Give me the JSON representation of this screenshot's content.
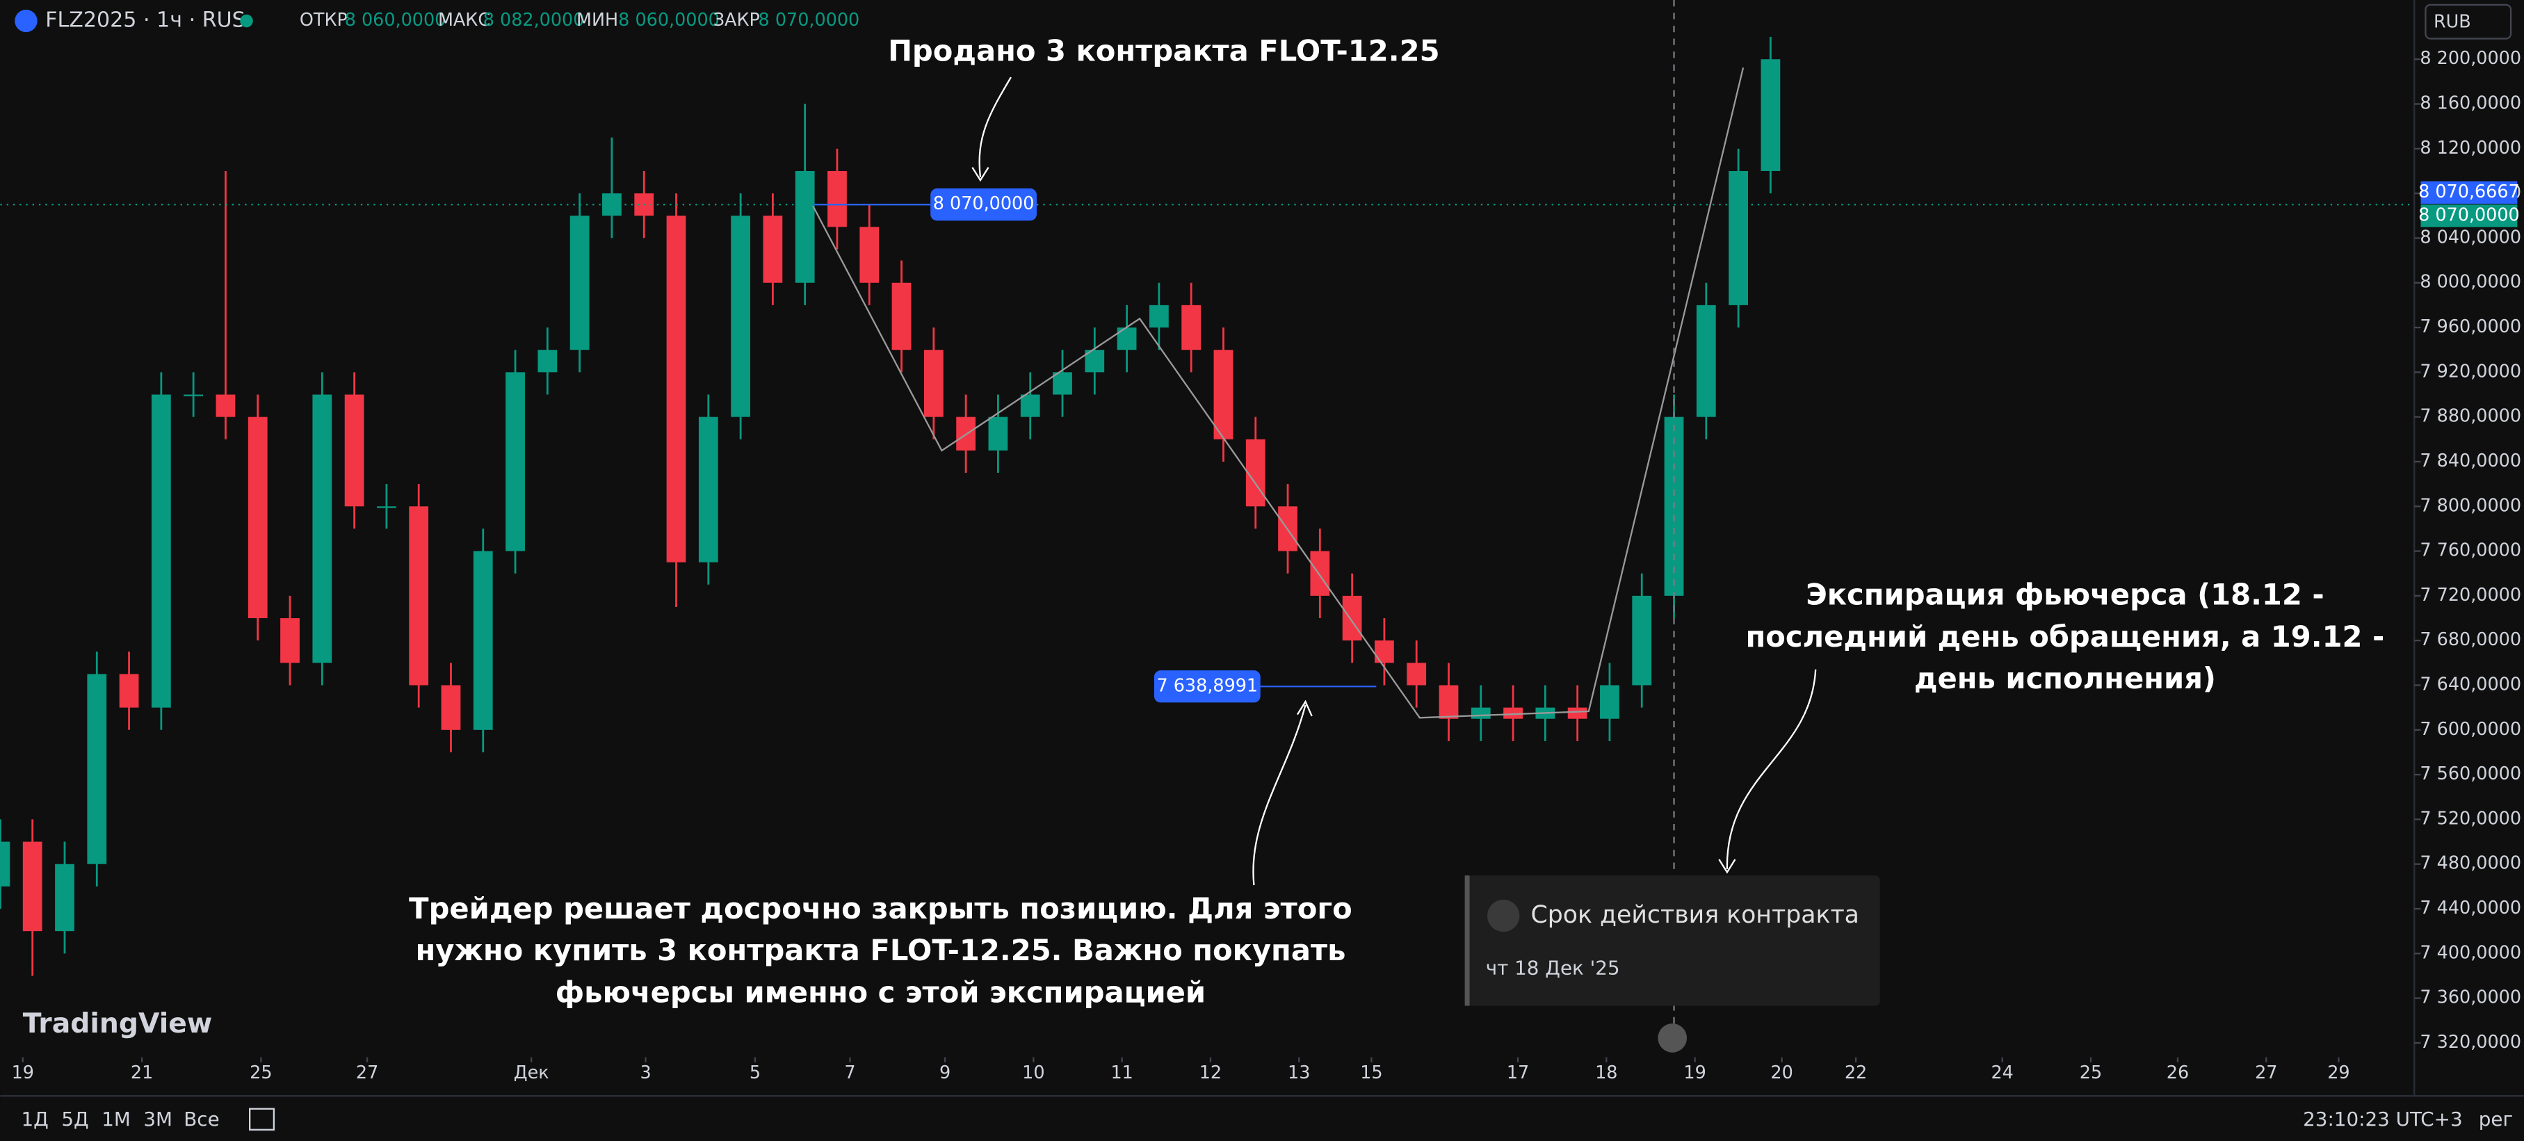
{
  "header": {
    "symbol": "FLZ2025 · 1ч · RUS",
    "ohlc": [
      {
        "label": "ОТКР",
        "value": "8 060,0000"
      },
      {
        "label": "МАКС",
        "value": "8 082,0000"
      },
      {
        "label": "МИН",
        "value": "8 060,0000"
      },
      {
        "label": "ЗАКР",
        "value": "8 070,0000"
      }
    ],
    "currency": "RUB",
    "logo": "TradingView"
  },
  "chart_data": {
    "type": "candlestick",
    "x": [
      0,
      2,
      4,
      6,
      8,
      10,
      12,
      14,
      16,
      18,
      20,
      22,
      24,
      26,
      28,
      30,
      32,
      34,
      36,
      38,
      40,
      42,
      44,
      46,
      48,
      50,
      52,
      54,
      56,
      58,
      60,
      62,
      64,
      66,
      68,
      70,
      72,
      74,
      76,
      78,
      80,
      82,
      84,
      86,
      88,
      90,
      92,
      94,
      96,
      98,
      100,
      102,
      104,
      106,
      108,
      110
    ],
    "open": [
      7460,
      7500,
      7420,
      7480,
      7650,
      7620,
      7900,
      7900,
      7880,
      7700,
      7660,
      7900,
      7800,
      7800,
      7640,
      7600,
      7760,
      7920,
      7940,
      8060,
      8080,
      8060,
      7750,
      7880,
      8060,
      8000,
      8100,
      8050,
      8000,
      7940,
      7880,
      7850,
      7880,
      7900,
      7920,
      7940,
      7960,
      7980,
      7940,
      7860,
      7800,
      7760,
      7720,
      7680,
      7660,
      7640,
      7610,
      7620,
      7610,
      7620,
      7610,
      7640,
      7720,
      7880,
      7980,
      8100
    ],
    "high": [
      7520,
      7520,
      7500,
      7670,
      7670,
      7920,
      7920,
      8100,
      7900,
      7720,
      7920,
      7920,
      7820,
      7820,
      7660,
      7780,
      7940,
      7960,
      8080,
      8130,
      8100,
      8080,
      7900,
      8080,
      8080,
      8160,
      8120,
      8070,
      8020,
      7960,
      7900,
      7900,
      7920,
      7940,
      7960,
      7980,
      8000,
      8000,
      7960,
      7880,
      7820,
      7780,
      7740,
      7700,
      7680,
      7660,
      7640,
      7640,
      7640,
      7640,
      7660,
      7740,
      7900,
      8000,
      8120,
      8220
    ],
    "low": [
      7440,
      7380,
      7400,
      7460,
      7600,
      7600,
      7880,
      7860,
      7680,
      7640,
      7640,
      7780,
      7780,
      7620,
      7580,
      7580,
      7740,
      7900,
      7920,
      8040,
      8040,
      7710,
      7730,
      7860,
      7980,
      7980,
      8030,
      7980,
      7920,
      7860,
      7830,
      7830,
      7860,
      7880,
      7900,
      7920,
      7940,
      7920,
      7840,
      7780,
      7740,
      7700,
      7660,
      7640,
      7620,
      7590,
      7590,
      7590,
      7590,
      7590,
      7590,
      7620,
      7700,
      7860,
      7960,
      8080
    ],
    "close": [
      7500,
      7420,
      7480,
      7650,
      7620,
      7900,
      7900,
      7880,
      7700,
      7660,
      7900,
      7800,
      7800,
      7640,
      7600,
      7760,
      7920,
      7940,
      8060,
      8080,
      8060,
      7750,
      7880,
      8060,
      8000,
      8100,
      8050,
      8000,
      7940,
      7880,
      7850,
      7880,
      7900,
      7920,
      7940,
      7960,
      7980,
      7940,
      7860,
      7800,
      7760,
      7720,
      7680,
      7660,
      7640,
      7610,
      7620,
      7610,
      7620,
      7610,
      7640,
      7720,
      7880,
      7980,
      8100,
      8200
    ],
    "up_color": "#089981",
    "down_color": "#f23645",
    "xlim": [
      0,
      150
    ],
    "ylim": [
      7310,
      8253
    ],
    "xticks": [
      {
        "value": 1.4,
        "label": "19"
      },
      {
        "value": 8.8,
        "label": "21"
      },
      {
        "value": 16.2,
        "label": "25"
      },
      {
        "value": 22.8,
        "label": "27"
      },
      {
        "value": 33,
        "label": "Дек"
      },
      {
        "value": 40.1,
        "label": "3"
      },
      {
        "value": 46.9,
        "label": "5"
      },
      {
        "value": 52.8,
        "label": "7"
      },
      {
        "value": 58.7,
        "label": "9"
      },
      {
        "value": 64.2,
        "label": "10"
      },
      {
        "value": 69.7,
        "label": "11"
      },
      {
        "value": 75.2,
        "label": "12"
      },
      {
        "value": 80.7,
        "label": "13"
      },
      {
        "value": 85.2,
        "label": "15"
      },
      {
        "value": 94.3,
        "label": "17"
      },
      {
        "value": 99.8,
        "label": "18"
      },
      {
        "value": 105.3,
        "label": "19"
      },
      {
        "value": 110.7,
        "label": "20"
      },
      {
        "value": 115.3,
        "label": "22"
      },
      {
        "value": 124.4,
        "label": "24"
      },
      {
        "value": 129.9,
        "label": "25"
      },
      {
        "value": 135.3,
        "label": "26"
      },
      {
        "value": 140.8,
        "label": "27"
      },
      {
        "value": 145.3,
        "label": "29"
      }
    ],
    "yticks": [
      {
        "value": 7320,
        "label": "7 320,0000"
      },
      {
        "value": 7360,
        "label": "7 360,0000"
      },
      {
        "value": 7400,
        "label": "7 400,0000"
      },
      {
        "value": 7440,
        "label": "7 440,0000"
      },
      {
        "value": 7480,
        "label": "7 480,0000"
      },
      {
        "value": 7520,
        "label": "7 520,0000"
      },
      {
        "value": 7560,
        "label": "7 560,0000"
      },
      {
        "value": 7600,
        "label": "7 600,0000"
      },
      {
        "value": 7640,
        "label": "7 640,0000"
      },
      {
        "value": 7680,
        "label": "7 680,0000"
      },
      {
        "value": 7720,
        "label": "7 720,0000"
      },
      {
        "value": 7760,
        "label": "7 760,0000"
      },
      {
        "value": 7800,
        "label": "7 800,0000"
      },
      {
        "value": 7840,
        "label": "7 840,0000"
      },
      {
        "value": 7880,
        "label": "7 880,0000"
      },
      {
        "value": 7920,
        "label": "7 920,0000"
      },
      {
        "value": 7960,
        "label": "7 960,0000"
      },
      {
        "value": 8000,
        "label": "8 000,0000"
      },
      {
        "value": 8040,
        "label": "8 040,0000"
      },
      {
        "value": 8080,
        "label": "8 080,0000"
      },
      {
        "value": 8120,
        "label": "8 120,0000"
      },
      {
        "value": 8160,
        "label": "8 160,0000"
      },
      {
        "value": 8200,
        "label": "8 200,0000"
      }
    ],
    "price_lines": [
      {
        "value": 8070,
        "label": "8 070,0000"
      },
      {
        "value": 7638.8991,
        "label": "7 638,8991"
      }
    ],
    "axis_badges": [
      {
        "value": 8070.6667,
        "label": "8 070,6667",
        "color": "#2962ff"
      },
      {
        "value": 8070,
        "label": "8 070,0000",
        "color": "#089981"
      }
    ]
  },
  "annotations": [
    {
      "lines": [
        "Продано 3 контракта FLOT-12.25"
      ]
    },
    {
      "lines": [
        "Трейдер решает досрочно закрыть позицию. Для этого",
        "нужно купить 3 контракта FLOT-12.25. Важно покупать",
        "фьючерсы именно с этой экспирацией"
      ]
    },
    {
      "lines": [
        "Экспирация фьючерса (18.12 -",
        "последний день обращения, а 19.12 -",
        "день исполнения)"
      ]
    }
  ],
  "tooltip": {
    "title": "Срок действия контракта",
    "date": "чт 18 Дек '25"
  },
  "toolbar": {
    "ranges": [
      "1Д",
      "5Д",
      "1М",
      "3М",
      "Все"
    ],
    "time": "23:10:23 UTC+3",
    "mode": "рег"
  }
}
